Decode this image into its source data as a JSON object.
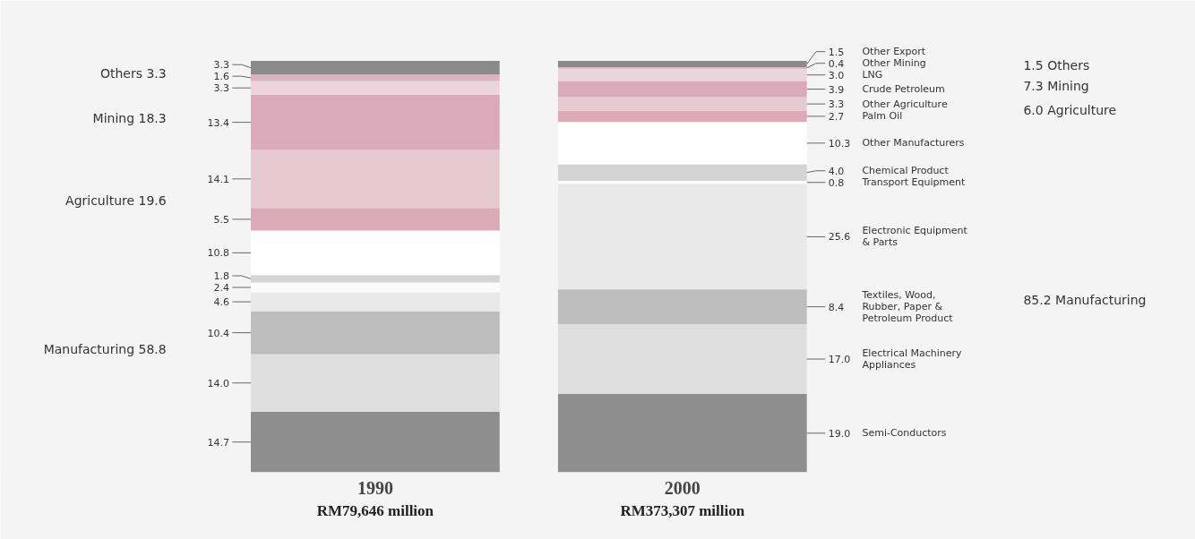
{
  "chart_data": {
    "type": "bar",
    "stacked": true,
    "categories": [
      "1990",
      "2000"
    ],
    "series": [
      {
        "name": "Semi-Conductors",
        "color": "#8e8e8e",
        "values": [
          14.7,
          19.0
        ],
        "value_labels": [
          "14.7",
          "19.0"
        ]
      },
      {
        "name": "Electrical Machinery\nAppliances",
        "color": "#dedede",
        "values": [
          14.0,
          17.0
        ],
        "value_labels": [
          "14.0",
          "17.0"
        ]
      },
      {
        "name": "Textiles, Wood,\nRubber, Paper &\nPetroleum Product",
        "color": "#bdbdbd",
        "values": [
          10.4,
          8.4
        ],
        "value_labels": [
          "10.4",
          "8.4"
        ]
      },
      {
        "name": "Electronic Equipment\n& Parts",
        "color": "#e9e9e9",
        "values": [
          4.6,
          25.6
        ],
        "value_labels": [
          "4.6",
          "25.6"
        ]
      },
      {
        "name": "Transport Equipment",
        "color": "#fbfbfb",
        "values": [
          2.4,
          0.8
        ],
        "value_labels": [
          "2.4",
          "0.8"
        ]
      },
      {
        "name": "Chemical Product",
        "color": "#d4d4d4",
        "values": [
          1.8,
          4.0
        ],
        "value_labels": [
          "1.8",
          "4.0"
        ]
      },
      {
        "name": "Other Manufacturers",
        "color": "#ffffff",
        "values": [
          10.8,
          10.3
        ],
        "value_labels": [
          "10.8",
          "10.3"
        ]
      },
      {
        "name": "Palm Oil",
        "color": "#dcabb9",
        "values": [
          5.5,
          2.7
        ],
        "value_labels": [
          "5.5",
          "2.7"
        ]
      },
      {
        "name": "Other Agriculture",
        "color": "#e6cad2",
        "values": [
          14.1,
          3.3
        ],
        "value_labels": [
          "14.1",
          "3.3"
        ]
      },
      {
        "name": "Crude Petroleum",
        "color": "#dbaaba",
        "values": [
          13.4,
          3.9
        ],
        "value_labels": [
          "13.4",
          "3.9"
        ]
      },
      {
        "name": "LNG",
        "color": "#ebd4db",
        "values": [
          3.3,
          3.0
        ],
        "value_labels": [
          "3.3",
          "3.0"
        ]
      },
      {
        "name": "Other Mining",
        "color": "#d9b3c0",
        "values": [
          1.6,
          0.4
        ],
        "value_labels": [
          "1.6",
          "0.4"
        ]
      },
      {
        "name": "Other Export",
        "color": "#8a8a8a",
        "values": [
          3.3,
          1.5
        ],
        "value_labels": [
          "3.3",
          "1.5"
        ]
      }
    ],
    "grid": false,
    "tick_labels": "x",
    "annotations": [
      "Others 3.3",
      "Mining 18.3",
      "Agriculture 19.6",
      "Manufacturing 58.8",
      "1.5 Others",
      "7.3 Mining",
      "6.0 Agriculture",
      "85.2 Manufacturing",
      "RM79,646 million",
      "RM373,307 million"
    ]
  }
}
